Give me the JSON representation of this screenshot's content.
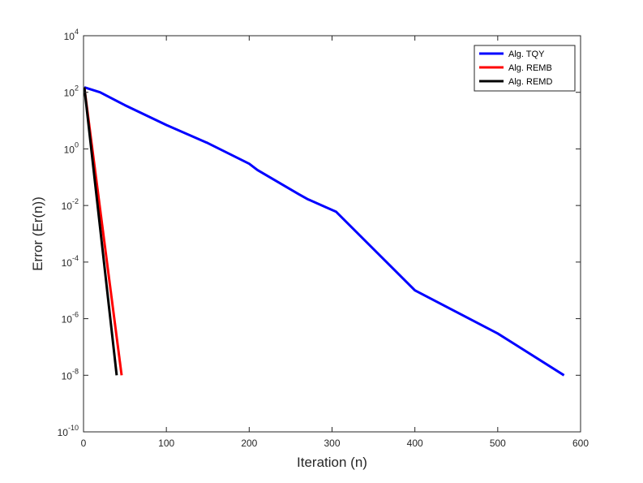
{
  "chart_data": {
    "type": "line",
    "title": "",
    "xlabel": "Iteration (n)",
    "ylabel": "Error (Er(n))",
    "xlim": [
      0,
      600
    ],
    "ylim": [
      1e-10,
      10000
    ],
    "yscale": "log",
    "grid": false,
    "legend_position": "top-right",
    "x_ticks": [
      0,
      100,
      200,
      300,
      400,
      500,
      600
    ],
    "y_ticks": [
      {
        "base": "10",
        "exp": "-10",
        "value": 1e-10
      },
      {
        "base": "10",
        "exp": "-8",
        "value": 1e-08
      },
      {
        "base": "10",
        "exp": "-6",
        "value": 1e-06
      },
      {
        "base": "10",
        "exp": "-4",
        "value": 0.0001
      },
      {
        "base": "10",
        "exp": "-2",
        "value": 0.01
      },
      {
        "base": "10",
        "exp": "0",
        "value": 1
      },
      {
        "base": "10",
        "exp": "2",
        "value": 100
      },
      {
        "base": "10",
        "exp": "4",
        "value": 10000
      }
    ],
    "series": [
      {
        "name": "Alg. TQY",
        "color": "#0000ff",
        "points": [
          [
            1,
            150
          ],
          [
            20,
            100
          ],
          [
            50,
            35
          ],
          [
            100,
            7
          ],
          [
            150,
            1.6
          ],
          [
            200,
            0.3
          ],
          [
            210,
            0.18
          ],
          [
            260,
            0.025
          ],
          [
            270,
            0.017
          ],
          [
            305,
            0.006
          ],
          [
            400,
            1e-05
          ],
          [
            500,
            3e-07
          ],
          [
            580,
            1e-08
          ]
        ]
      },
      {
        "name": "Alg. REMB",
        "color": "#ff0000",
        "points": [
          [
            1,
            150
          ],
          [
            46,
            1e-08
          ]
        ]
      },
      {
        "name": "Alg. REMD",
        "color": "#000000",
        "points": [
          [
            1,
            150
          ],
          [
            40,
            1e-08
          ]
        ]
      }
    ]
  }
}
